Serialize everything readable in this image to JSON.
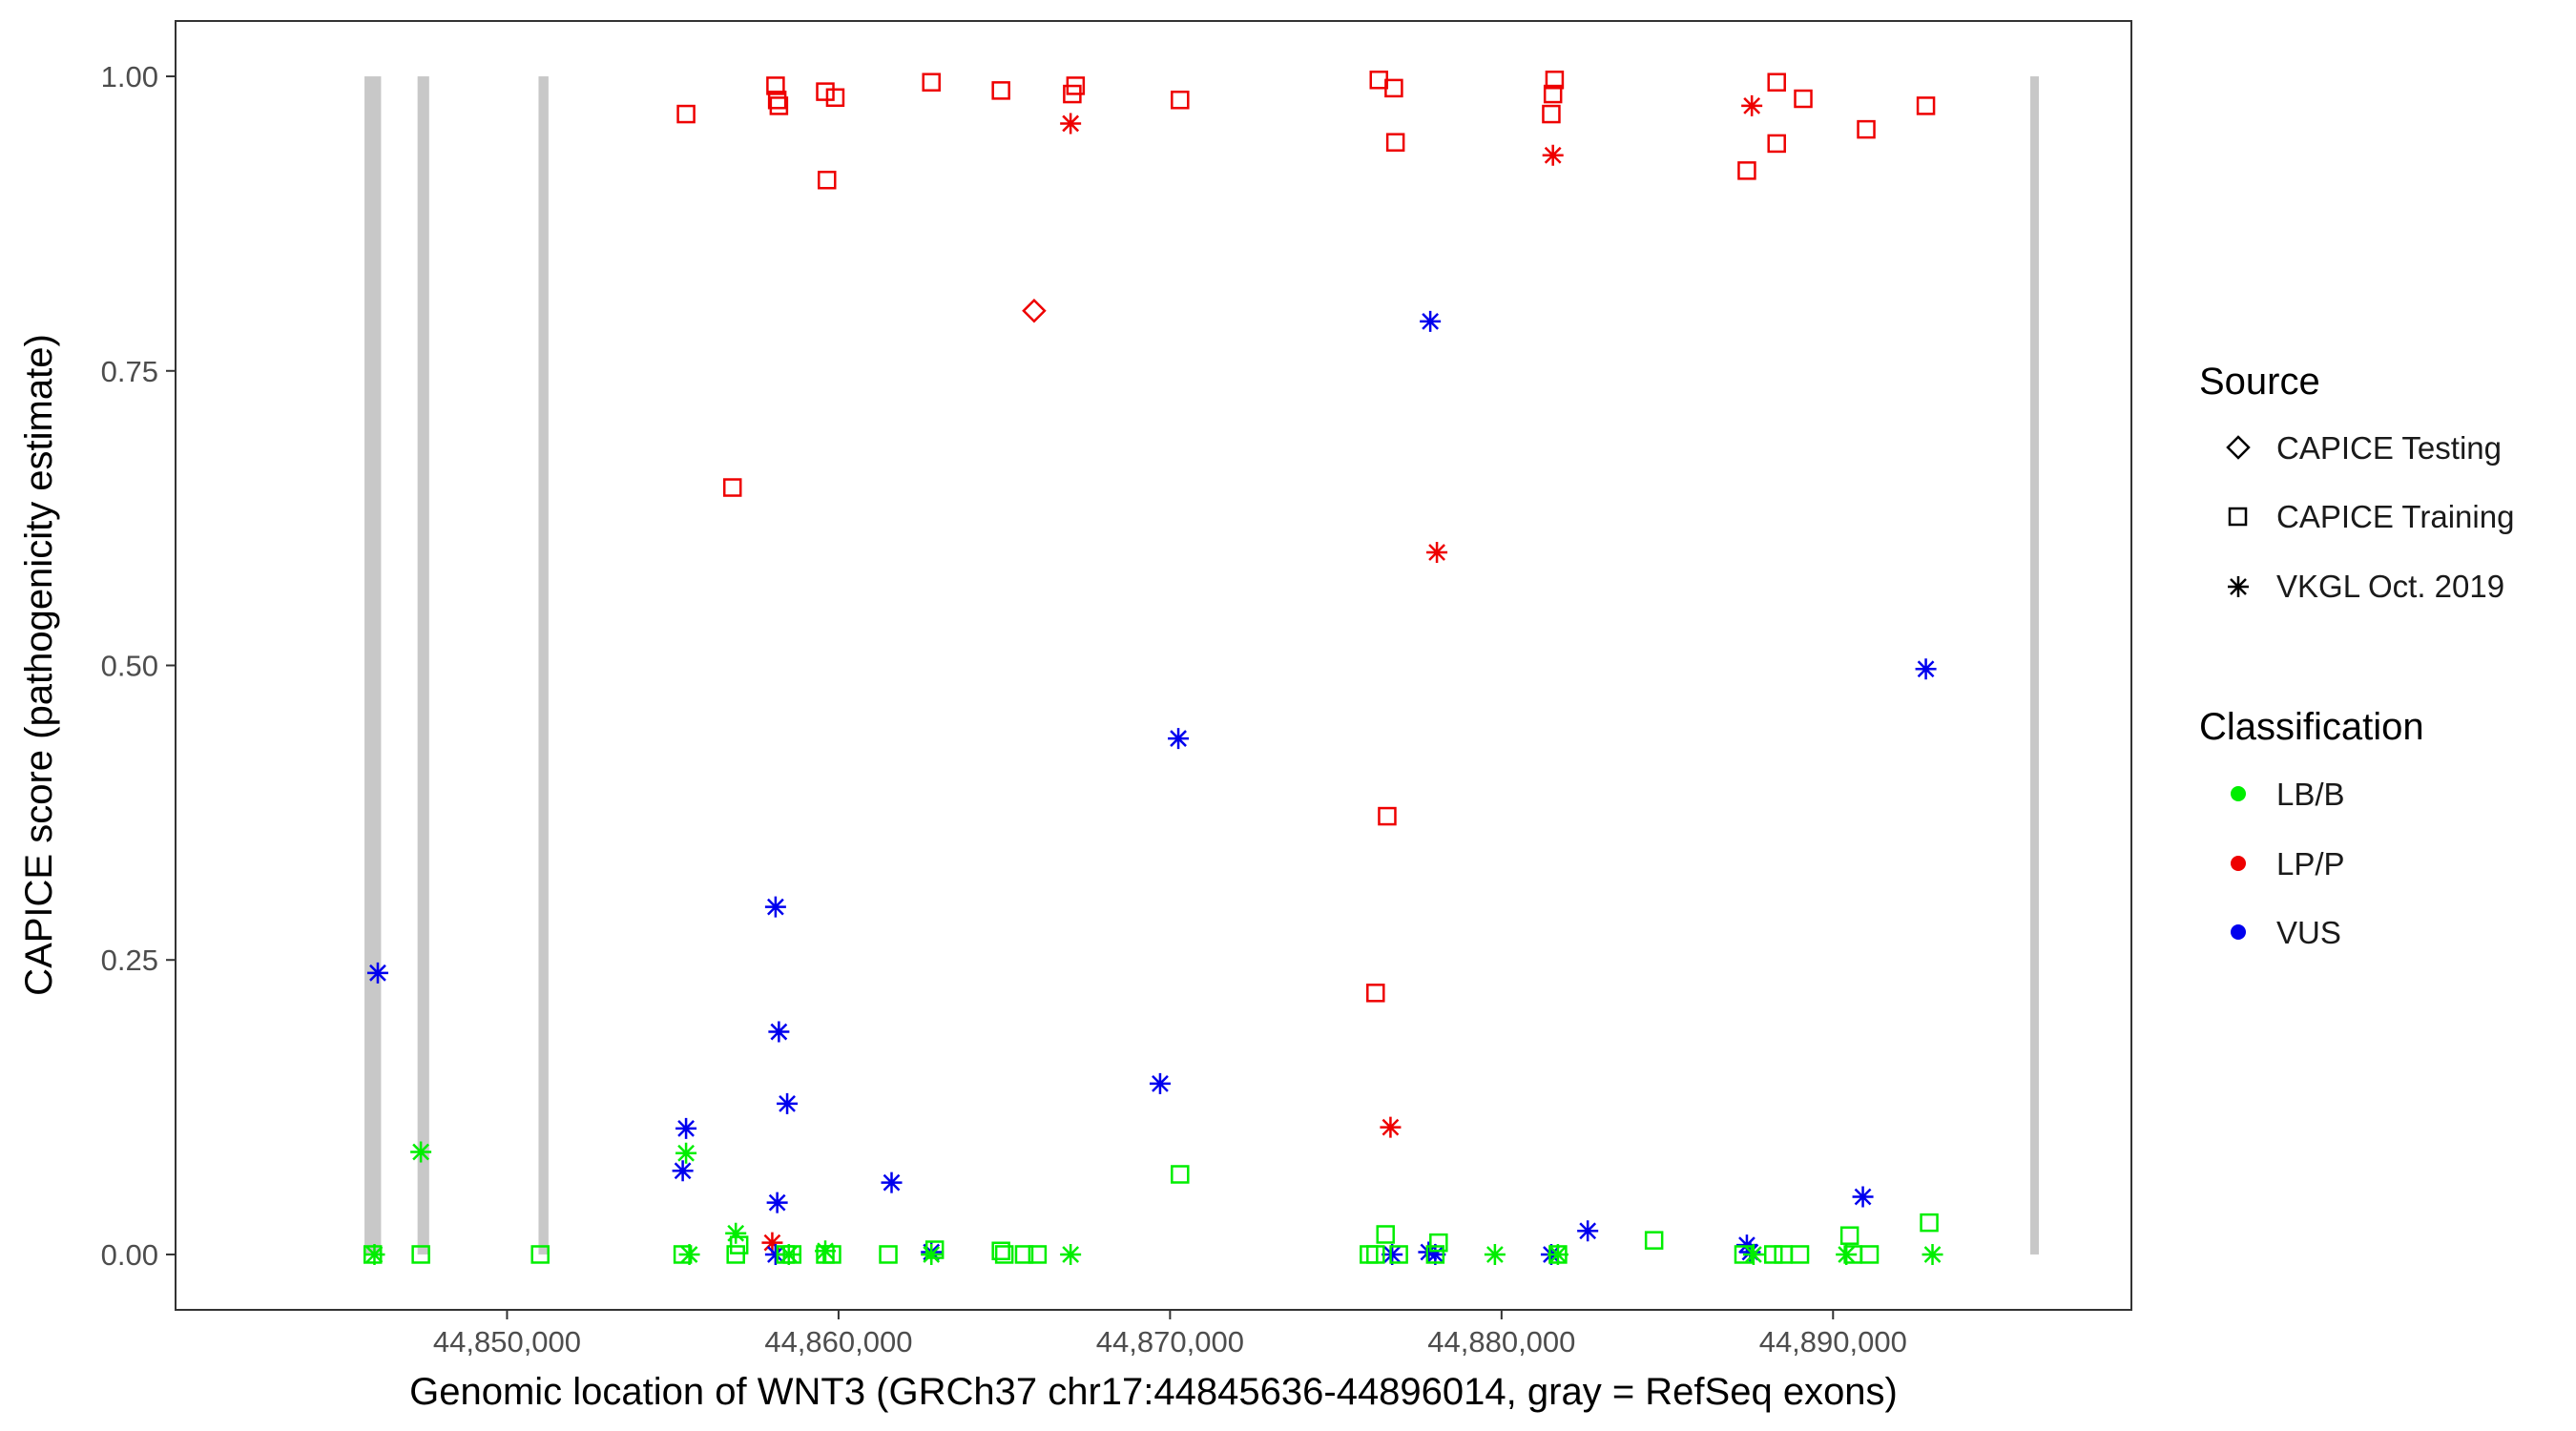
{
  "chart_data": {
    "type": "scatter",
    "title": "",
    "xlabel": "Genomic location of WNT3 (GRCh37 chr17:44845636-44896014, gray = RefSeq exons)",
    "ylabel": "CAPICE score (pathogenicity estimate)",
    "xlim": [
      44840000,
      44899000
    ],
    "ylim": [
      -0.047,
      1.047
    ],
    "x_ticks": [
      {
        "value": 44850000,
        "label": "44,850,000"
      },
      {
        "value": 44860000,
        "label": "44,860,000"
      },
      {
        "value": 44870000,
        "label": "44,870,000"
      },
      {
        "value": 44880000,
        "label": "44,880,000"
      },
      {
        "value": 44890000,
        "label": "44,890,000"
      }
    ],
    "y_ticks": [
      {
        "value": 0,
        "label": "0.00"
      },
      {
        "value": 0.25,
        "label": "0.25"
      },
      {
        "value": 0.5,
        "label": "0.50"
      },
      {
        "value": 0.75,
        "label": "0.75"
      },
      {
        "value": 1.0,
        "label": "1.00"
      }
    ],
    "grid": false,
    "exon_color": "#c8c8c8",
    "exons": [
      [
        44845700,
        44846200
      ],
      [
        44847300,
        44847650
      ],
      [
        44850950,
        44851250
      ],
      [
        44895950,
        44896014
      ]
    ],
    "legend_placement": "right",
    "legend": {
      "shape_title": "Source",
      "shape_entries": [
        {
          "label": "CAPICE Testing",
          "shape": "diamond"
        },
        {
          "label": "CAPICE Training",
          "shape": "square"
        },
        {
          "label": "VKGL Oct. 2019",
          "shape": "asterisk"
        }
      ],
      "color_title": "Classification",
      "color_entries": [
        {
          "label": "LB/B",
          "color": "#00ee00"
        },
        {
          "label": "LP/P",
          "color": "#ee0000"
        },
        {
          "label": "VUS",
          "color": "#0000ee"
        }
      ]
    },
    "series": [
      {
        "name": "LP/P",
        "color": "#ee0000",
        "points": [
          {
            "x": 44855400,
            "y": 0.968,
            "shape": "square"
          },
          {
            "x": 44858100,
            "y": 0.992,
            "shape": "square"
          },
          {
            "x": 44858150,
            "y": 0.98,
            "shape": "square"
          },
          {
            "x": 44858200,
            "y": 0.975,
            "shape": "square"
          },
          {
            "x": 44859600,
            "y": 0.987,
            "shape": "square"
          },
          {
            "x": 44859900,
            "y": 0.982,
            "shape": "square"
          },
          {
            "x": 44859650,
            "y": 0.912,
            "shape": "square"
          },
          {
            "x": 44862800,
            "y": 0.995,
            "shape": "square"
          },
          {
            "x": 44864900,
            "y": 0.988,
            "shape": "square"
          },
          {
            "x": 44867050,
            "y": 0.985,
            "shape": "square"
          },
          {
            "x": 44867150,
            "y": 0.992,
            "shape": "square"
          },
          {
            "x": 44870300,
            "y": 0.98,
            "shape": "square"
          },
          {
            "x": 44876300,
            "y": 0.997,
            "shape": "square"
          },
          {
            "x": 44876750,
            "y": 0.99,
            "shape": "square"
          },
          {
            "x": 44876800,
            "y": 0.944,
            "shape": "square"
          },
          {
            "x": 44881600,
            "y": 0.997,
            "shape": "square"
          },
          {
            "x": 44881550,
            "y": 0.985,
            "shape": "square"
          },
          {
            "x": 44881500,
            "y": 0.968,
            "shape": "square"
          },
          {
            "x": 44887400,
            "y": 0.92,
            "shape": "square"
          },
          {
            "x": 44888300,
            "y": 0.995,
            "shape": "square"
          },
          {
            "x": 44888300,
            "y": 0.943,
            "shape": "square"
          },
          {
            "x": 44889100,
            "y": 0.981,
            "shape": "square"
          },
          {
            "x": 44891000,
            "y": 0.955,
            "shape": "square"
          },
          {
            "x": 44892800,
            "y": 0.975,
            "shape": "square"
          },
          {
            "x": 44856800,
            "y": 0.651,
            "shape": "square"
          },
          {
            "x": 44876550,
            "y": 0.372,
            "shape": "square"
          },
          {
            "x": 44876200,
            "y": 0.222,
            "shape": "square"
          },
          {
            "x": 44865900,
            "y": 0.801,
            "shape": "diamond"
          },
          {
            "x": 44867000,
            "y": 0.96,
            "shape": "asterisk"
          },
          {
            "x": 44881550,
            "y": 0.933,
            "shape": "asterisk"
          },
          {
            "x": 44887550,
            "y": 0.975,
            "shape": "asterisk"
          },
          {
            "x": 44878050,
            "y": 0.596,
            "shape": "asterisk"
          },
          {
            "x": 44876650,
            "y": 0.108,
            "shape": "asterisk"
          },
          {
            "x": 44858000,
            "y": 0.01,
            "shape": "asterisk"
          }
        ]
      },
      {
        "name": "VUS",
        "color": "#0000ee",
        "points": [
          {
            "x": 44846100,
            "y": 0.239,
            "shape": "asterisk"
          },
          {
            "x": 44855400,
            "y": 0.107,
            "shape": "asterisk"
          },
          {
            "x": 44855300,
            "y": 0.071,
            "shape": "asterisk"
          },
          {
            "x": 44858100,
            "y": 0.295,
            "shape": "asterisk"
          },
          {
            "x": 44858200,
            "y": 0.189,
            "shape": "asterisk"
          },
          {
            "x": 44858450,
            "y": 0.128,
            "shape": "asterisk"
          },
          {
            "x": 44858150,
            "y": 0.044,
            "shape": "asterisk"
          },
          {
            "x": 44858100,
            "y": 0.0,
            "shape": "asterisk"
          },
          {
            "x": 44861600,
            "y": 0.061,
            "shape": "asterisk"
          },
          {
            "x": 44862800,
            "y": 0.002,
            "shape": "asterisk"
          },
          {
            "x": 44869700,
            "y": 0.145,
            "shape": "asterisk"
          },
          {
            "x": 44870250,
            "y": 0.438,
            "shape": "asterisk"
          },
          {
            "x": 44877850,
            "y": 0.792,
            "shape": "asterisk"
          },
          {
            "x": 44876700,
            "y": 0.0,
            "shape": "asterisk"
          },
          {
            "x": 44877800,
            "y": 0.002,
            "shape": "asterisk"
          },
          {
            "x": 44878000,
            "y": 0.0,
            "shape": "asterisk"
          },
          {
            "x": 44881500,
            "y": 0.0,
            "shape": "asterisk"
          },
          {
            "x": 44882600,
            "y": 0.02,
            "shape": "asterisk"
          },
          {
            "x": 44887400,
            "y": 0.008,
            "shape": "asterisk"
          },
          {
            "x": 44887500,
            "y": 0.002,
            "shape": "asterisk"
          },
          {
            "x": 44890900,
            "y": 0.049,
            "shape": "asterisk"
          },
          {
            "x": 44892800,
            "y": 0.497,
            "shape": "asterisk"
          }
        ]
      },
      {
        "name": "LB/B",
        "color": "#00ee00",
        "points": [
          {
            "x": 44845950,
            "y": 0.0,
            "shape": "square"
          },
          {
            "x": 44847400,
            "y": 0.0,
            "shape": "square"
          },
          {
            "x": 44851000,
            "y": 0.0,
            "shape": "square"
          },
          {
            "x": 44855300,
            "y": 0.0,
            "shape": "square"
          },
          {
            "x": 44856900,
            "y": 0.0,
            "shape": "square"
          },
          {
            "x": 44857000,
            "y": 0.008,
            "shape": "square"
          },
          {
            "x": 44858400,
            "y": 0.0,
            "shape": "square"
          },
          {
            "x": 44858600,
            "y": 0.0,
            "shape": "square"
          },
          {
            "x": 44859600,
            "y": 0.0,
            "shape": "square"
          },
          {
            "x": 44859800,
            "y": 0.0,
            "shape": "square"
          },
          {
            "x": 44861500,
            "y": 0.0,
            "shape": "square"
          },
          {
            "x": 44862900,
            "y": 0.004,
            "shape": "square"
          },
          {
            "x": 44864900,
            "y": 0.003,
            "shape": "square"
          },
          {
            "x": 44865000,
            "y": 0.0,
            "shape": "square"
          },
          {
            "x": 44865600,
            "y": 0.0,
            "shape": "square"
          },
          {
            "x": 44866000,
            "y": 0.0,
            "shape": "square"
          },
          {
            "x": 44870300,
            "y": 0.068,
            "shape": "square"
          },
          {
            "x": 44876000,
            "y": 0.0,
            "shape": "square"
          },
          {
            "x": 44876200,
            "y": 0.0,
            "shape": "square"
          },
          {
            "x": 44876500,
            "y": 0.017,
            "shape": "square"
          },
          {
            "x": 44876900,
            "y": 0.0,
            "shape": "square"
          },
          {
            "x": 44878100,
            "y": 0.01,
            "shape": "square"
          },
          {
            "x": 44878000,
            "y": 0.0,
            "shape": "square"
          },
          {
            "x": 44881700,
            "y": 0.0,
            "shape": "square"
          },
          {
            "x": 44884600,
            "y": 0.012,
            "shape": "square"
          },
          {
            "x": 44887300,
            "y": 0.0,
            "shape": "square"
          },
          {
            "x": 44888200,
            "y": 0.0,
            "shape": "square"
          },
          {
            "x": 44888500,
            "y": 0.0,
            "shape": "square"
          },
          {
            "x": 44889000,
            "y": 0.0,
            "shape": "square"
          },
          {
            "x": 44890500,
            "y": 0.016,
            "shape": "square"
          },
          {
            "x": 44890600,
            "y": 0.0,
            "shape": "square"
          },
          {
            "x": 44891100,
            "y": 0.0,
            "shape": "square"
          },
          {
            "x": 44892900,
            "y": 0.027,
            "shape": "square"
          },
          {
            "x": 44846000,
            "y": 0.0,
            "shape": "asterisk"
          },
          {
            "x": 44847400,
            "y": 0.087,
            "shape": "asterisk"
          },
          {
            "x": 44855400,
            "y": 0.086,
            "shape": "asterisk"
          },
          {
            "x": 44855500,
            "y": 0.0,
            "shape": "asterisk"
          },
          {
            "x": 44856900,
            "y": 0.018,
            "shape": "asterisk"
          },
          {
            "x": 44858500,
            "y": 0.0,
            "shape": "asterisk"
          },
          {
            "x": 44859600,
            "y": 0.003,
            "shape": "asterisk"
          },
          {
            "x": 44862800,
            "y": 0.0,
            "shape": "asterisk"
          },
          {
            "x": 44867000,
            "y": 0.0,
            "shape": "asterisk"
          },
          {
            "x": 44879800,
            "y": 0.0,
            "shape": "asterisk"
          },
          {
            "x": 44881700,
            "y": 0.0,
            "shape": "asterisk"
          },
          {
            "x": 44887600,
            "y": 0.0,
            "shape": "asterisk"
          },
          {
            "x": 44890400,
            "y": 0.0,
            "shape": "asterisk"
          },
          {
            "x": 44893000,
            "y": 0.0,
            "shape": "asterisk"
          }
        ]
      }
    ]
  }
}
